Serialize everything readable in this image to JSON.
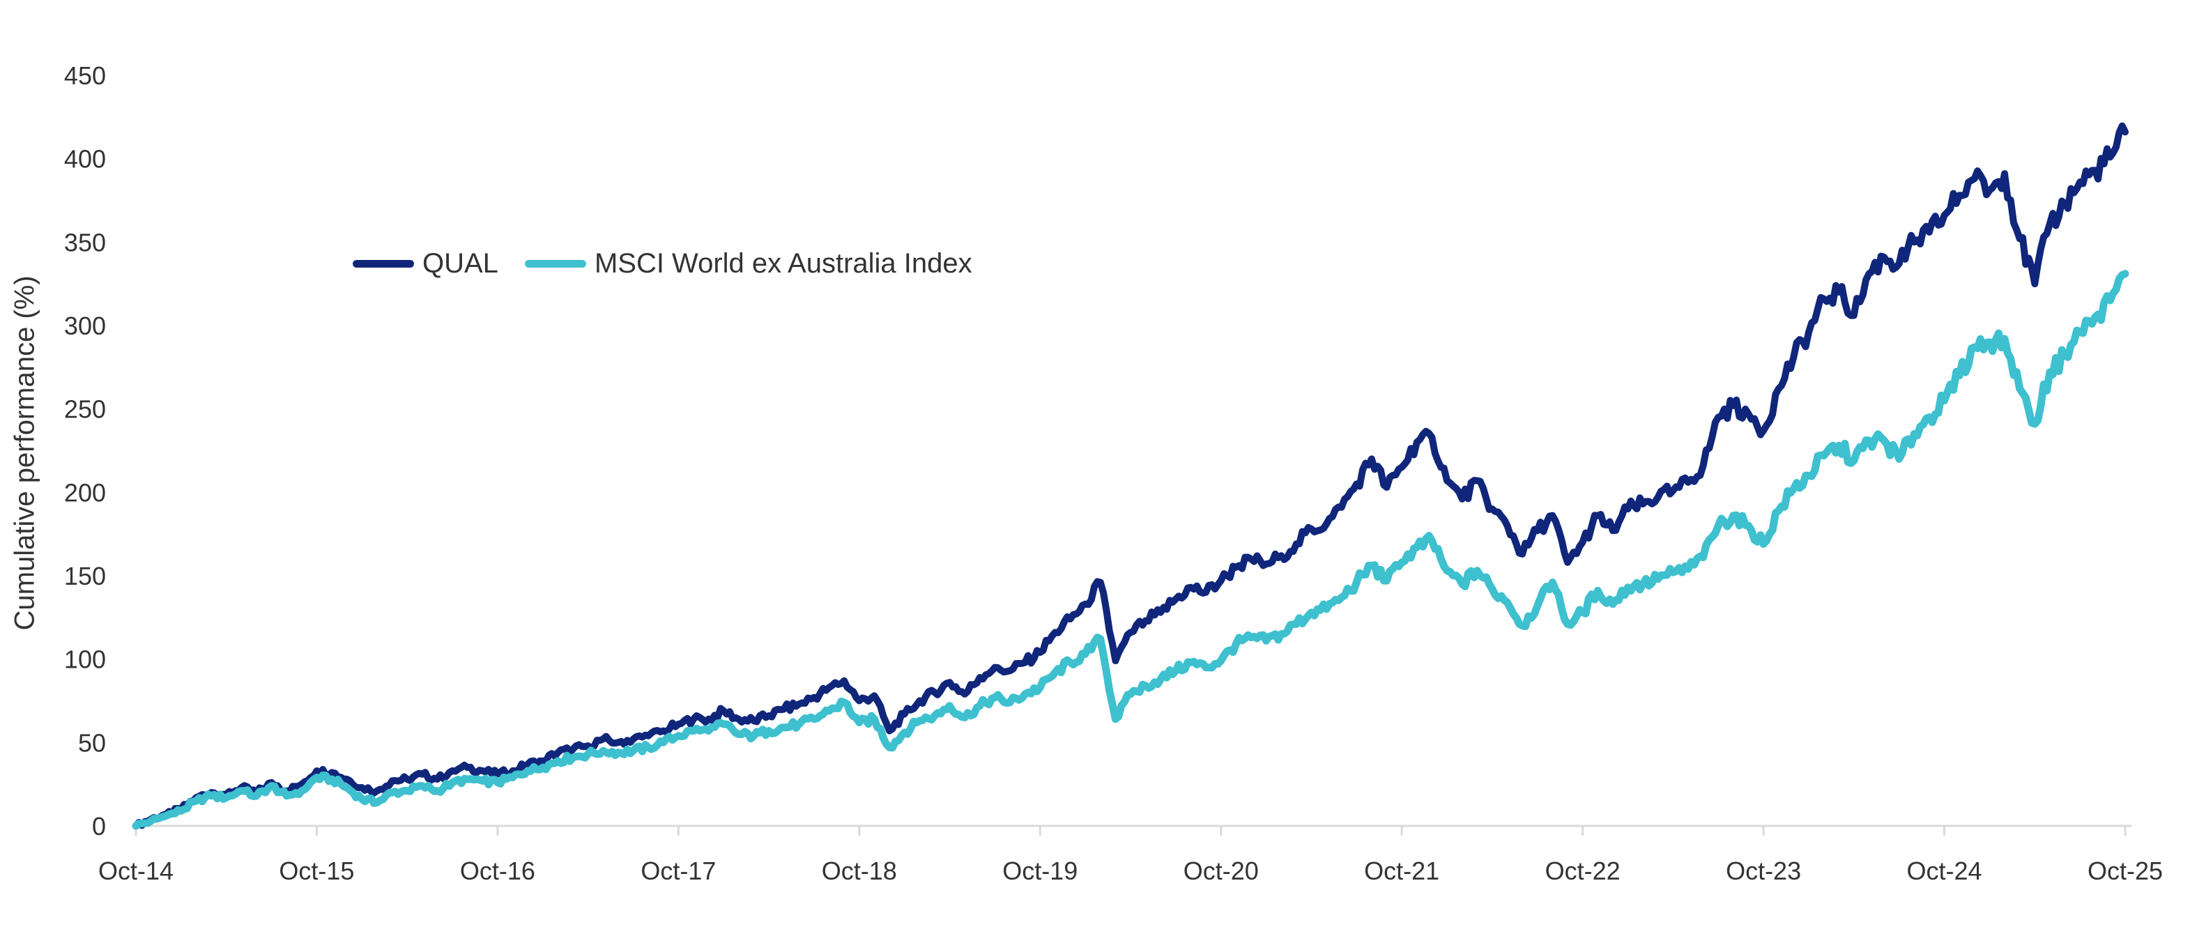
{
  "chart": {
    "y_axis_title": "Cumulative performance (%)"
  },
  "chart_data": {
    "type": "line",
    "title": "",
    "ylabel": "Cumulative performance (%)",
    "ylim": [
      0,
      450
    ],
    "y_ticks": [
      0,
      50,
      100,
      150,
      200,
      250,
      300,
      350,
      400,
      450
    ],
    "x_tick_labels": [
      "Oct-14",
      "Oct-15",
      "Oct-16",
      "Oct-17",
      "Oct-18",
      "Oct-19",
      "Oct-20",
      "Oct-21",
      "Oct-22",
      "Oct-23",
      "Oct-24",
      "Oct-25"
    ],
    "x_unit": "monthly cumulative performance (%) from Oct-2014 to Oct-2025",
    "grid": false,
    "legend_position": "inside-top-left",
    "axis_color": "#d9d9d9",
    "text_color": "#333333",
    "series": [
      {
        "name": "QUAL",
        "color": "#10267b",
        "line_width": 10,
        "values": [
          0,
          4,
          7,
          10,
          17,
          20,
          19,
          23,
          20,
          26,
          21,
          25,
          33,
          32,
          28,
          23,
          21,
          27,
          28,
          31,
          28,
          33,
          35,
          33,
          31,
          33,
          37,
          39,
          44,
          46,
          48,
          52,
          50,
          52,
          54,
          57,
          61,
          64,
          64,
          69,
          64,
          63,
          66,
          70,
          73,
          77,
          83,
          87,
          75,
          78,
          57,
          67,
          75,
          80,
          86,
          79,
          89,
          95,
          93,
          98,
          104,
          116,
          124,
          133,
          146,
          99,
          116,
          123,
          128,
          136,
          143,
          140,
          147,
          155,
          160,
          157,
          162,
          169,
          178,
          181,
          191,
          205,
          220,
          203,
          215,
          230,
          233,
          207,
          196,
          207,
          190,
          180,
          163,
          177,
          186,
          158,
          170,
          186,
          177,
          190,
          193,
          197,
          201,
          206,
          216,
          245,
          252,
          247,
          237,
          262,
          281,
          296,
          316,
          320,
          306,
          331,
          341,
          337,
          350,
          356,
          366,
          378,
          388,
          381,
          391,
          352,
          325,
          361,
          373,
          386,
          393,
          401,
          416
        ]
      },
      {
        "name": "MSCI World ex Australia Index",
        "color": "#3ec0cf",
        "line_width": 11,
        "values": [
          0,
          3,
          6,
          9,
          15,
          18,
          17,
          21,
          18,
          24,
          18,
          21,
          29,
          28,
          23,
          16,
          14,
          20,
          21,
          24,
          21,
          26,
          28,
          27,
          26,
          29,
          33,
          35,
          39,
          41,
          43,
          45,
          44,
          45,
          47,
          50,
          54,
          57,
          57,
          61,
          55,
          54,
          57,
          59,
          61,
          64,
          69,
          74,
          62,
          64,
          47,
          56,
          63,
          66,
          72,
          65,
          72,
          77,
          74,
          79,
          83,
          92,
          98,
          103,
          112,
          64,
          79,
          84,
          88,
          93,
          98,
          95,
          99,
          109,
          113,
          111,
          115,
          121,
          128,
          130,
          137,
          146,
          156,
          147,
          158,
          167,
          171,
          153,
          145,
          153,
          142,
          134,
          120,
          132,
          146,
          121,
          128,
          141,
          133,
          143,
          145,
          148,
          152,
          154,
          161,
          180,
          186,
          180,
          169,
          189,
          202,
          210,
          222,
          228,
          219,
          231,
          231,
          220,
          235,
          245,
          255,
          270,
          287,
          290,
          292,
          262,
          241,
          272,
          282,
          296,
          305,
          315,
          331
        ]
      }
    ]
  }
}
